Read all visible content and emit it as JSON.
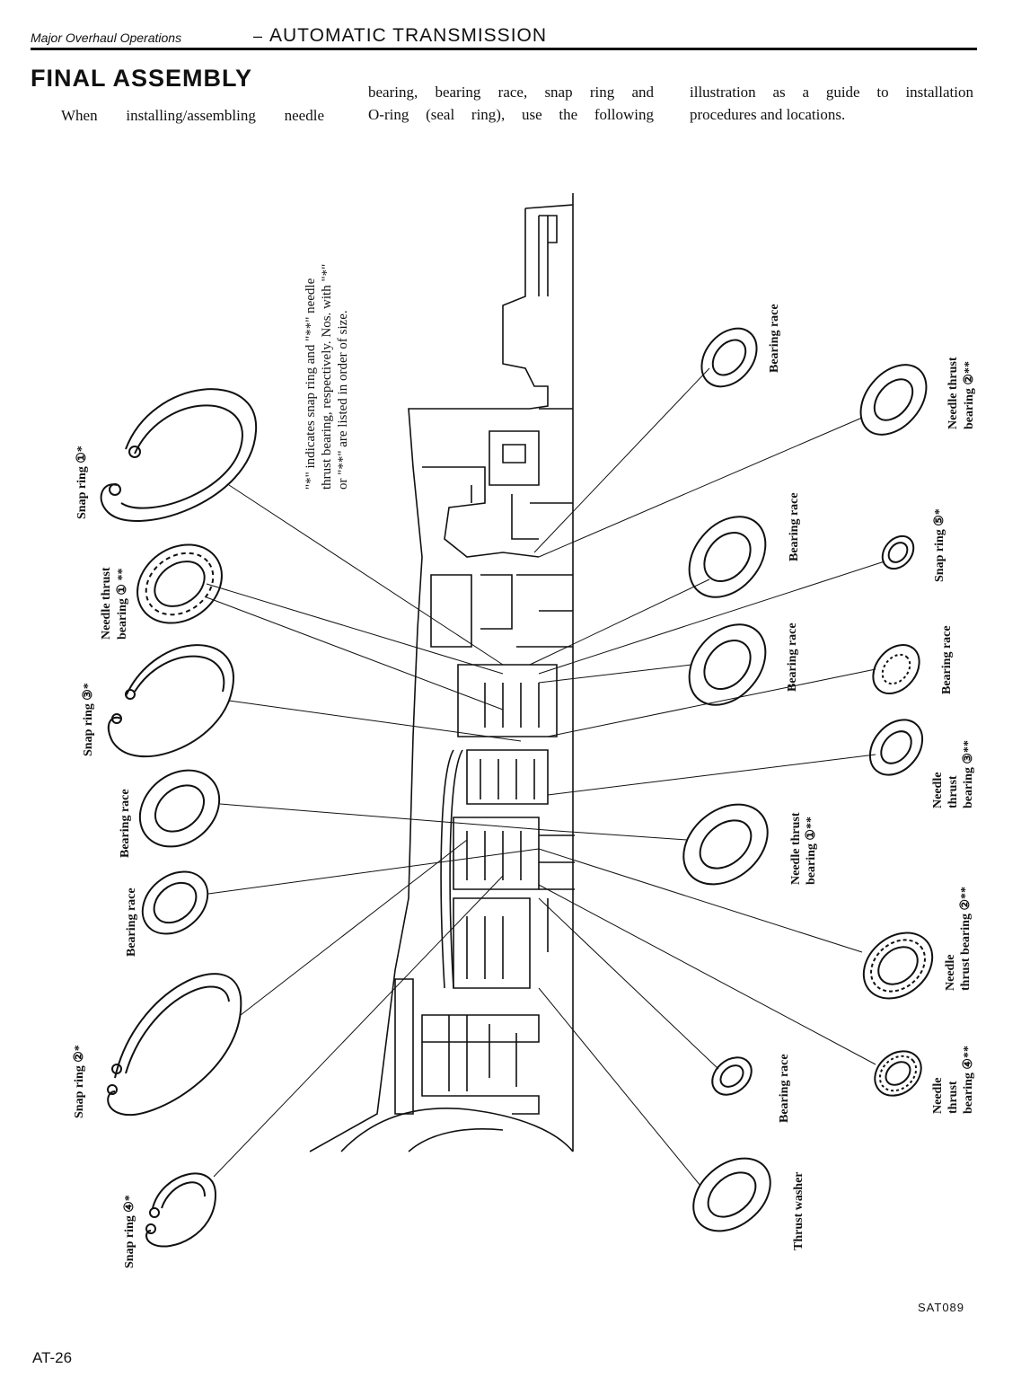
{
  "header": {
    "section": "Major Overhaul Operations",
    "dash": "–",
    "title": "AUTOMATIC TRANSMISSION"
  },
  "heading": "FINAL ASSEMBLY",
  "intro": {
    "col1_line1": "When installing/assembling needle",
    "col2_line1": "bearing, bearing race, snap ring and",
    "col2_line2": "O-ring (seal ring), use the following",
    "col3_line1": "illustration as a guide to installation",
    "col3_line2": "procedures and locations."
  },
  "note": {
    "line1": "\"*\" indicates snap ring and \"**\" needle",
    "line2": "thrust bearing, respectively. Nos. with \"*\"",
    "line3": "or \"**\" are listed in order of size."
  },
  "labels": {
    "snap_ring_1": "Snap ring ①*",
    "needle_thrust_1_line1": "Needle thrust",
    "needle_thrust_1_line2": "bearing ① **",
    "snap_ring_3": "Snap ring ③*",
    "bearing_race_left_1": "Bearing race",
    "bearing_race_left_2": "Bearing race",
    "snap_ring_2": "Snap ring ②*",
    "snap_ring_4": "Snap ring ④*",
    "bearing_race_right_top": "Bearing race",
    "needle_thrust_2_top_line1": "Needle thrust",
    "needle_thrust_2_top_line2": "bearing ②**",
    "bearing_race_mid_1": "Bearing race",
    "snap_ring_5": "Snap ring ⑤*",
    "bearing_race_mid_2": "Bearing race",
    "bearing_race_mid_3": "Bearing race",
    "needle_thrust_3_line1": "Needle",
    "needle_thrust_3_line2": "thrust",
    "needle_thrust_3_line3": "bearing ③**",
    "needle_thrust_1b_line1": "Needle thrust",
    "needle_thrust_1b_line2": "bearing ①**",
    "needle_thrust_2b_line1": "Needle",
    "needle_thrust_2b_line2": "thrust bearing ②**",
    "bearing_race_low": "Bearing race",
    "needle_thrust_4_line1": "Needle",
    "needle_thrust_4_line2": "thrust",
    "needle_thrust_4_line3": "bearing ④**",
    "thrust_washer": "Thrust washer"
  },
  "figure_id": "SAT089",
  "page_number": "AT-26"
}
